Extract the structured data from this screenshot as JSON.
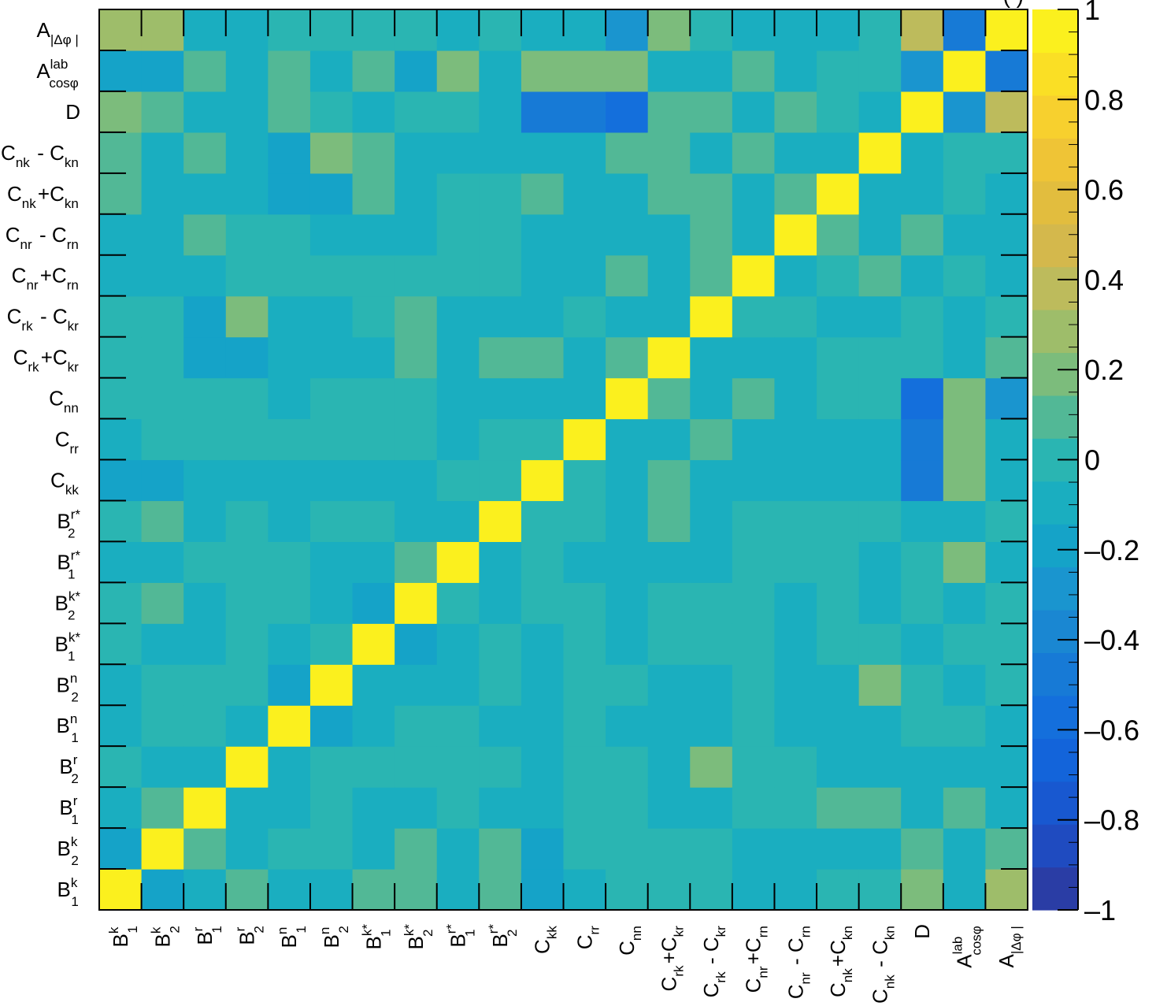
{
  "chart_data": {
    "type": "heatmap",
    "title": "",
    "xlabel": "",
    "ylabel": "",
    "categories": [
      "B1k",
      "B2k",
      "B1r",
      "B2r",
      "B1n",
      "B2n",
      "B1k*",
      "B2k*",
      "B1r*",
      "B2r*",
      "Ckk",
      "Crr",
      "Cnn",
      "Crk+Ckr",
      "Crk-Ckr",
      "Cnr+Crn",
      "Cnr-Crn",
      "Cnk+Ckn",
      "Cnk-Ckn",
      "D",
      "Acosphi_lab",
      "A_dphi"
    ],
    "tick_labels": [
      {
        "base": "B",
        "sub": "1",
        "sup": "k"
      },
      {
        "base": "B",
        "sub": "2",
        "sup": "k"
      },
      {
        "base": "B",
        "sub": "1",
        "sup": "r"
      },
      {
        "base": "B",
        "sub": "2",
        "sup": "r"
      },
      {
        "base": "B",
        "sub": "1",
        "sup": "n"
      },
      {
        "base": "B",
        "sub": "2",
        "sup": "n"
      },
      {
        "base": "B",
        "sub": "1",
        "sup": "k*"
      },
      {
        "base": "B",
        "sub": "2",
        "sup": "k*"
      },
      {
        "base": "B",
        "sub": "1",
        "sup": "r*"
      },
      {
        "base": "B",
        "sub": "2",
        "sup": "r*"
      },
      {
        "base": "C",
        "sub": "kk",
        "sup": ""
      },
      {
        "base": "C",
        "sub": "rr",
        "sup": ""
      },
      {
        "base": "C",
        "sub": "nn",
        "sup": ""
      },
      {
        "base": "C",
        "sub": "rk",
        "op": "+",
        "base2": "C",
        "sub2": "kr"
      },
      {
        "base": "C",
        "sub": "rk",
        "op": " - ",
        "base2": "C",
        "sub2": "kr"
      },
      {
        "base": "C",
        "sub": "nr",
        "op": "+",
        "base2": "C",
        "sub2": "rn"
      },
      {
        "base": "C",
        "sub": "nr",
        "op": " - ",
        "base2": "C",
        "sub2": "rn"
      },
      {
        "base": "C",
        "sub": "nk",
        "op": "+",
        "base2": "C",
        "sub2": "kn"
      },
      {
        "base": "C",
        "sub": "nk",
        "op": " - ",
        "base2": "C",
        "sub2": "kn"
      },
      {
        "base": "D",
        "sub": "",
        "sup": ""
      },
      {
        "base": "A",
        "sub": "cosφ",
        "sup": "lab"
      },
      {
        "base": "A",
        "sub": "|Δφ  |",
        "sup": "",
        "subsub": "ll"
      }
    ],
    "values": [
      [
        1.0,
        -0.15,
        -0.08,
        0.0,
        -0.05,
        -0.05,
        0.0,
        0.0,
        -0.05,
        0.0,
        -0.15,
        -0.1,
        0.0,
        0.0,
        0.0,
        -0.05,
        -0.05,
        0.05,
        0.05,
        0.2,
        -0.15,
        0.3
      ],
      [
        -0.15,
        1.0,
        0.05,
        -0.05,
        0.0,
        0.0,
        -0.05,
        0.05,
        -0.05,
        0.05,
        -0.15,
        0.0,
        0.0,
        0.0,
        0.0,
        -0.05,
        -0.05,
        -0.05,
        -0.05,
        0.05,
        -0.15,
        0.25
      ],
      [
        -0.08,
        0.05,
        1.0,
        -0.05,
        0.0,
        0.0,
        -0.05,
        -0.05,
        0.0,
        -0.05,
        -0.05,
        0.0,
        0.0,
        -0.15,
        -0.15,
        -0.05,
        0.05,
        -0.05,
        0.05,
        -0.05,
        0.05,
        -0.12
      ],
      [
        0.05,
        -0.05,
        -0.05,
        1.0,
        -0.05,
        0.0,
        0.0,
        0.0,
        0.0,
        0.0,
        -0.05,
        0.0,
        0.0,
        -0.15,
        0.18,
        0.0,
        0.0,
        -0.05,
        -0.05,
        -0.05,
        -0.05,
        -0.1
      ],
      [
        -0.05,
        0.0,
        -0.05,
        -0.05,
        1.0,
        -0.15,
        -0.05,
        0.0,
        0.0,
        -0.05,
        -0.05,
        0.0,
        -0.05,
        -0.05,
        -0.05,
        0.0,
        0.0,
        -0.15,
        -0.15,
        0.05,
        0.05,
        0.0
      ],
      [
        -0.05,
        0.0,
        0.0,
        0.0,
        -0.15,
        1.0,
        0.0,
        -0.05,
        -0.05,
        0.0,
        -0.05,
        0.0,
        0.0,
        -0.05,
        -0.05,
        0.0,
        -0.05,
        -0.15,
        0.18,
        0.0,
        -0.05,
        0.0
      ],
      [
        0.05,
        -0.1,
        -0.1,
        0.0,
        -0.05,
        -0.05,
        1.0,
        -0.15,
        -0.05,
        0.0,
        -0.05,
        0.0,
        0.0,
        -0.05,
        0.0,
        0.0,
        -0.05,
        0.05,
        0.05,
        -0.1,
        0.05,
        0.0
      ],
      [
        0.05,
        0.05,
        -0.05,
        0.0,
        0.0,
        -0.05,
        -0.15,
        1.0,
        0.05,
        -0.05,
        -0.05,
        0.0,
        0.0,
        0.05,
        0.05,
        0.0,
        -0.05,
        -0.05,
        -0.05,
        0.0,
        -0.15,
        0.0
      ],
      [
        -0.05,
        -0.05,
        0.0,
        0.0,
        0.0,
        -0.05,
        -0.05,
        0.0,
        1.0,
        -0.05,
        0.0,
        -0.05,
        -0.05,
        -0.05,
        -0.05,
        0.0,
        0.0,
        0.0,
        -0.05,
        0.0,
        0.18,
        -0.05
      ],
      [
        0.05,
        0.05,
        -0.05,
        0.0,
        -0.05,
        0.0,
        0.0,
        -0.05,
        -0.05,
        1.0,
        0.0,
        0.0,
        -0.05,
        0.05,
        -0.05,
        0.0,
        0.0,
        0.0,
        -0.05,
        -0.05,
        -0.12,
        0.0
      ],
      [
        -0.15,
        -0.15,
        -0.05,
        -0.05,
        -0.05,
        -0.05,
        -0.05,
        0.0,
        0.0,
        0.0,
        1.0,
        0.0,
        -0.05,
        0.05,
        -0.05,
        -0.05,
        -0.05,
        0.05,
        -0.05,
        -0.45,
        0.2,
        -0.05
      ],
      [
        -0.05,
        0.0,
        0.0,
        0.0,
        0.0,
        0.0,
        0.0,
        0.0,
        -0.05,
        0.0,
        0.0,
        1.0,
        -0.05,
        -0.05,
        0.0,
        -0.05,
        -0.05,
        -0.05,
        -0.05,
        -0.45,
        0.2,
        -0.05
      ],
      [
        0.0,
        0.0,
        0.0,
        0.0,
        -0.05,
        0.0,
        -0.05,
        -0.05,
        -0.05,
        -0.05,
        -0.05,
        -0.05,
        1.0,
        0.05,
        -0.05,
        0.05,
        -0.05,
        -0.05,
        0.05,
        -0.55,
        0.2,
        -0.3
      ],
      [
        0.0,
        0.0,
        -0.12,
        -0.12,
        -0.05,
        -0.05,
        0.0,
        0.0,
        -0.05,
        0.05,
        0.05,
        -0.05,
        0.05,
        1.0,
        -0.05,
        -0.05,
        -0.05,
        0.05,
        0.05,
        0.05,
        -0.05,
        0.2
      ],
      [
        0.0,
        0.0,
        -0.12,
        0.18,
        -0.05,
        -0.05,
        0.0,
        0.0,
        -0.05,
        -0.05,
        -0.05,
        0.05,
        -0.05,
        -0.05,
        1.0,
        0.05,
        0.05,
        0.05,
        -0.05,
        0.05,
        -0.05,
        0.0
      ],
      [
        -0.05,
        -0.05,
        0.0,
        0.0,
        0.0,
        0.0,
        0.0,
        0.0,
        0.0,
        0.0,
        -0.05,
        -0.05,
        0.05,
        -0.05,
        0.0,
        1.0,
        -0.05,
        -0.05,
        0.05,
        -0.05,
        0.05,
        -0.05
      ],
      [
        -0.05,
        -0.05,
        0.0,
        0.0,
        -0.05,
        -0.05,
        -0.05,
        -0.05,
        0.0,
        0.0,
        -0.05,
        -0.05,
        -0.05,
        -0.05,
        0.0,
        -0.05,
        1.0,
        0.05,
        -0.05,
        0.05,
        -0.05,
        -0.05
      ],
      [
        0.0,
        -0.05,
        0.05,
        -0.05,
        -0.12,
        -0.12,
        0.0,
        0.0,
        0.0,
        0.0,
        -0.05,
        -0.05,
        0.0,
        0.0,
        -0.05,
        0.0,
        0.05,
        1.0,
        -0.05,
        0.0,
        0.0,
        -0.05
      ],
      [
        0.0,
        -0.05,
        0.05,
        -0.05,
        -0.12,
        0.18,
        0.0,
        -0.05,
        -0.05,
        0.0,
        -0.05,
        -0.05,
        0.0,
        0.0,
        -0.05,
        0.05,
        -0.05,
        -0.05,
        1.0,
        -0.05,
        0.0,
        0.0
      ],
      [
        0.18,
        0.05,
        -0.05,
        -0.05,
        0.0,
        0.0,
        -0.05,
        0.0,
        0.0,
        -0.05,
        -0.45,
        -0.45,
        -0.6,
        0.0,
        0.0,
        -0.05,
        0.05,
        -0.05,
        -0.05,
        1.0,
        -0.3,
        0.35
      ],
      [
        -0.12,
        -0.12,
        0.05,
        -0.05,
        0.0,
        -0.05,
        0.0,
        -0.12,
        0.2,
        -0.12,
        0.18,
        0.18,
        0.18,
        -0.05,
        -0.05,
        0.0,
        -0.05,
        0.0,
        0.0,
        -0.3,
        1.0,
        -0.5
      ],
      [
        0.25,
        0.12,
        -0.12,
        -0.12,
        -0.05,
        0.0,
        0.0,
        0.0,
        -0.05,
        0.0,
        -0.12,
        -0.12,
        -0.3,
        0.12,
        0.0,
        -0.05,
        -0.05,
        -0.05,
        0.0,
        0.4,
        -0.5,
        1.0
      ]
    ],
    "zlim": [
      -1,
      1
    ],
    "colorbar_ticks": [
      {
        "value": 1,
        "label": "1"
      },
      {
        "value": 0.8,
        "label": "0.8"
      },
      {
        "value": 0.6,
        "label": "0.6"
      },
      {
        "value": 0.4,
        "label": "0.4"
      },
      {
        "value": 0.2,
        "label": "0.2"
      },
      {
        "value": 0,
        "label": "0"
      },
      {
        "value": -0.2,
        "label": "–0.2"
      },
      {
        "value": -0.4,
        "label": "–0.4"
      },
      {
        "value": -0.6,
        "label": "–0.6"
      },
      {
        "value": -0.8,
        "label": "–0.8"
      },
      {
        "value": -1,
        "label": "–1"
      }
    ],
    "palette": [
      "#2a3da5",
      "#1f4bc0",
      "#1858d0",
      "#1364da",
      "#146fdc",
      "#177ad6",
      "#1a87d2",
      "#1a95cf",
      "#15a3c8",
      "#1aaec0",
      "#2ab5b2",
      "#52b896",
      "#7cbc7c",
      "#9ebd6a",
      "#bdbb5c",
      "#d4b84c",
      "#e2bd3e",
      "#efc436",
      "#f7d02e",
      "#fadf25",
      "#fbf01e"
    ],
    "top_right_text": "(                    )",
    "grid": false,
    "legend": "colorbar-right"
  }
}
